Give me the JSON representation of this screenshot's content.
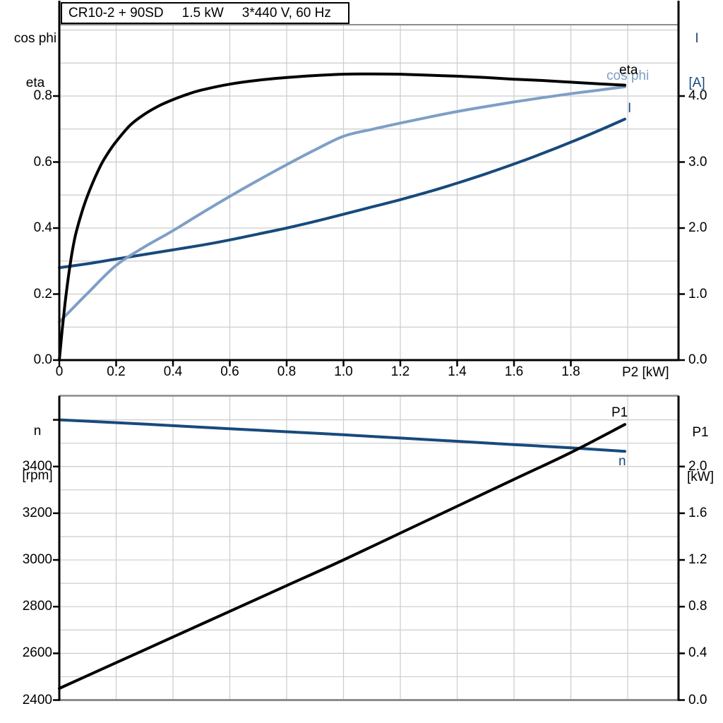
{
  "title_box": {
    "model": "CR10-2 + 90SD",
    "power": "1.5 kW",
    "voltage": "3*440 V, 60 Hz"
  },
  "colors": {
    "eta": "#000000",
    "cos_phi": "#7e9fc6",
    "current": "#174a7c",
    "speed": "#174a7c",
    "p1": "#000000",
    "grid": "#cccccc",
    "border": "#8c8c8c",
    "axis": "#000000"
  },
  "top_chart": {
    "left_axis_title": {
      "line1": "cos phi",
      "line2": "eta"
    },
    "right_axis_title": {
      "line1": "I",
      "line2": "[A]"
    },
    "x_axis_title": "P2 [kW]",
    "curve_labels": {
      "eta": "eta",
      "cos_phi": "cos phi",
      "current": "I"
    },
    "x_ticks": [
      {
        "v": 0.0,
        "t": "0"
      },
      {
        "v": 0.2,
        "t": "0.2"
      },
      {
        "v": 0.4,
        "t": "0.4"
      },
      {
        "v": 0.6,
        "t": "0.6"
      },
      {
        "v": 0.8,
        "t": "0.8"
      },
      {
        "v": 1.0,
        "t": "1.0"
      },
      {
        "v": 1.2,
        "t": "1.2"
      },
      {
        "v": 1.4,
        "t": "1.4"
      },
      {
        "v": 1.6,
        "t": "1.6"
      },
      {
        "v": 1.8,
        "t": "1.8"
      }
    ],
    "left_ticks": [
      {
        "v": 0.0,
        "t": "0.0"
      },
      {
        "v": 0.2,
        "t": "0.2"
      },
      {
        "v": 0.4,
        "t": "0.4"
      },
      {
        "v": 0.6,
        "t": "0.6"
      },
      {
        "v": 0.8,
        "t": "0.8"
      }
    ],
    "right_ticks": [
      {
        "v": 0.0,
        "t": "0.0"
      },
      {
        "v": 1.0,
        "t": "1.0"
      },
      {
        "v": 2.0,
        "t": "2.0"
      },
      {
        "v": 3.0,
        "t": "3.0"
      },
      {
        "v": 4.0,
        "t": "4.0"
      }
    ]
  },
  "bottom_chart": {
    "left_axis_title": {
      "line1": "n",
      "line2": "[rpm]"
    },
    "right_axis_title": {
      "line1": "P1",
      "line2": "[kW]"
    },
    "curve_labels": {
      "p1": "P1",
      "n": "n"
    },
    "left_ticks": [
      {
        "v": 2400,
        "t": "2400"
      },
      {
        "v": 2600,
        "t": "2600"
      },
      {
        "v": 2800,
        "t": "2800"
      },
      {
        "v": 3000,
        "t": "3000"
      },
      {
        "v": 3200,
        "t": "3200"
      },
      {
        "v": 3400,
        "t": "3400"
      },
      {
        "v": 3600,
        "t": ""
      }
    ],
    "right_ticks": [
      {
        "v": 0.0,
        "t": "0.0"
      },
      {
        "v": 0.4,
        "t": "0.4"
      },
      {
        "v": 0.8,
        "t": "0.8"
      },
      {
        "v": 1.2,
        "t": "1.2"
      },
      {
        "v": 1.6,
        "t": "1.6"
      },
      {
        "v": 2.0,
        "t": "2.0"
      }
    ]
  },
  "chart_data": [
    {
      "type": "line",
      "title": "CR10-2 + 90SD  1.5 kW  3*440 V, 60 Hz",
      "xlabel": "P2 [kW]",
      "ylabel_left": "cos phi / eta",
      "ylabel_right": "I [A]",
      "xlim": [
        0,
        2.18
      ],
      "ylim_left": [
        0,
        1.016
      ],
      "ylim_right": [
        0,
        5.08
      ],
      "grid": true,
      "legend_position": "end-of-curve labels",
      "series": [
        {
          "name": "eta",
          "axis": "left",
          "color": "#000000",
          "x": [
            0,
            0.01,
            0.02,
            0.03,
            0.04,
            0.05,
            0.06,
            0.08,
            0.1,
            0.125,
            0.15,
            0.175,
            0.2,
            0.25,
            0.3,
            0.35,
            0.4,
            0.45,
            0.5,
            0.6,
            0.7,
            0.8,
            0.9,
            1.0,
            1.1,
            1.2,
            1.3,
            1.4,
            1.5,
            1.6,
            1.7,
            1.8,
            1.9,
            1.99
          ],
          "values": [
            0,
            0.09,
            0.17,
            0.24,
            0.3,
            0.35,
            0.39,
            0.45,
            0.5,
            0.552,
            0.597,
            0.632,
            0.662,
            0.712,
            0.745,
            0.77,
            0.789,
            0.805,
            0.818,
            0.836,
            0.848,
            0.856,
            0.862,
            0.866,
            0.867,
            0.866,
            0.863,
            0.86,
            0.856,
            0.851,
            0.847,
            0.842,
            0.837,
            0.833
          ]
        },
        {
          "name": "cos phi",
          "axis": "left",
          "color": "#7e9fc6",
          "x": [
            0,
            0.1,
            0.2,
            0.3,
            0.4,
            0.5,
            0.6,
            0.7,
            0.8,
            0.9,
            1.0,
            1.1,
            1.2,
            1.3,
            1.4,
            1.5,
            1.6,
            1.7,
            1.8,
            1.9,
            1.99
          ],
          "values": [
            0.115,
            0.203,
            0.287,
            0.343,
            0.392,
            0.445,
            0.496,
            0.545,
            0.592,
            0.637,
            0.678,
            0.699,
            0.718,
            0.736,
            0.753,
            0.768,
            0.782,
            0.795,
            0.807,
            0.818,
            0.828
          ]
        },
        {
          "name": "I",
          "axis": "right",
          "color": "#174a7c",
          "x": [
            0,
            0.1,
            0.2,
            0.3,
            0.4,
            0.5,
            0.6,
            0.7,
            0.8,
            0.9,
            1.0,
            1.1,
            1.2,
            1.3,
            1.4,
            1.5,
            1.6,
            1.7,
            1.8,
            1.9,
            1.99
          ],
          "values": [
            1.4,
            1.46,
            1.53,
            1.6,
            1.67,
            1.74,
            1.82,
            1.91,
            2.0,
            2.1,
            2.21,
            2.32,
            2.43,
            2.55,
            2.68,
            2.82,
            2.97,
            3.13,
            3.3,
            3.48,
            3.65
          ]
        }
      ]
    },
    {
      "type": "line",
      "title": "",
      "xlabel": "P2 [kW]",
      "ylabel_left": "n [rpm]",
      "ylabel_right": "P1 [kW]",
      "xlim": [
        0,
        2.18
      ],
      "ylim_left": [
        2400,
        3703
      ],
      "ylim_right": [
        0,
        2.606
      ],
      "grid": true,
      "legend_position": "end-of-curve labels",
      "series": [
        {
          "name": "n",
          "axis": "left",
          "color": "#174a7c",
          "x": [
            0,
            0.2,
            0.4,
            0.6,
            0.8,
            1.0,
            1.2,
            1.4,
            1.6,
            1.8,
            1.99
          ],
          "values": [
            3600,
            3588,
            3575,
            3562,
            3549,
            3536,
            3522,
            3508,
            3494,
            3480,
            3465
          ]
        },
        {
          "name": "P1",
          "axis": "right",
          "color": "#000000",
          "x": [
            0,
            0.2,
            0.4,
            0.6,
            0.8,
            1.0,
            1.2,
            1.4,
            1.6,
            1.8,
            1.99
          ],
          "values": [
            0.1,
            0.32,
            0.54,
            0.76,
            0.98,
            1.2,
            1.43,
            1.66,
            1.89,
            2.12,
            2.36
          ]
        }
      ]
    }
  ]
}
